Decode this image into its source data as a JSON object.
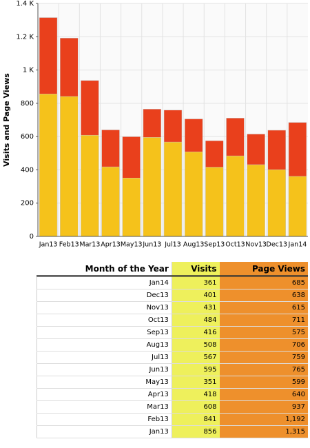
{
  "chart_data": {
    "type": "bar",
    "mode": "overlap",
    "ylabel": "Visits and Page Views",
    "categories": [
      "Jan13",
      "Feb13",
      "Mar13",
      "Apr13",
      "May13",
      "Jun13",
      "Jul13",
      "Aug13",
      "Sep13",
      "Oct13",
      "Nov13",
      "Dec13",
      "Jan14"
    ],
    "series": [
      {
        "name": "Page Views",
        "color": "#e9401c",
        "values": [
          1315,
          1192,
          937,
          640,
          599,
          765,
          759,
          706,
          575,
          711,
          615,
          638,
          685
        ]
      },
      {
        "name": "Visits",
        "color": "#f5c21b",
        "values": [
          856,
          841,
          608,
          418,
          351,
          595,
          567,
          508,
          416,
          484,
          431,
          401,
          361
        ]
      }
    ],
    "ylim": [
      0,
      1400
    ],
    "yticks": [
      0,
      200,
      400,
      600,
      800,
      {
        "value": 1000,
        "label": "1 K"
      },
      {
        "value": 1200,
        "label": "1.2 K"
      },
      {
        "value": 1400,
        "label": "1.4 K"
      }
    ],
    "grid": true
  },
  "table": {
    "header": [
      "Month of the Year",
      "Visits",
      "Page Views"
    ],
    "rows": [
      [
        "Jan14",
        "361",
        "685"
      ],
      [
        "Dec13",
        "401",
        "638"
      ],
      [
        "Nov13",
        "431",
        "615"
      ],
      [
        "Oct13",
        "484",
        "711"
      ],
      [
        "Sep13",
        "416",
        "575"
      ],
      [
        "Aug13",
        "508",
        "706"
      ],
      [
        "Jul13",
        "567",
        "759"
      ],
      [
        "Jun13",
        "595",
        "765"
      ],
      [
        "May13",
        "351",
        "599"
      ],
      [
        "Apr13",
        "418",
        "640"
      ],
      [
        "Mar13",
        "608",
        "937"
      ],
      [
        "Feb13",
        "841",
        "1,192"
      ],
      [
        "Jan13",
        "856",
        "1,315"
      ]
    ]
  }
}
